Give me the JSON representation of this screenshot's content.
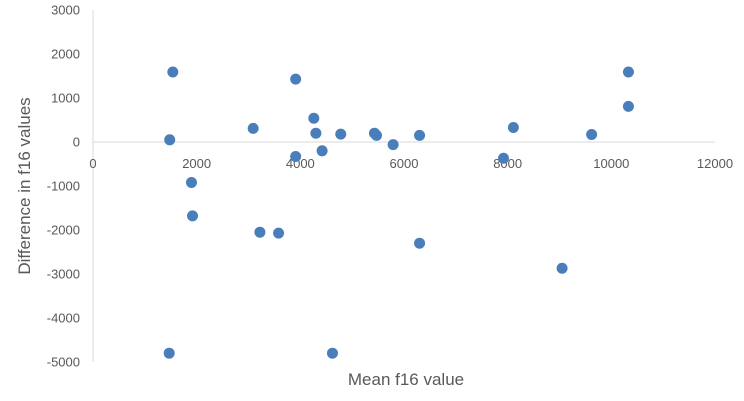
{
  "chart_data": {
    "type": "scatter",
    "title": "",
    "xlabel": "Mean f16 value",
    "ylabel": "Difference  in f16 values",
    "xlim": [
      0,
      12000
    ],
    "ylim": [
      -5000,
      3000
    ],
    "xticks": [
      0,
      2000,
      4000,
      6000,
      8000,
      10000,
      12000
    ],
    "yticks": [
      3000,
      2000,
      1000,
      0,
      -1000,
      -2000,
      -3000,
      -4000,
      -5000
    ],
    "xtick_labels": [
      "0",
      "2000",
      "4000",
      "6000",
      "8000",
      "10000",
      "12000"
    ],
    "ytick_labels": [
      "3000",
      "2000",
      "1000",
      "0",
      "-1000",
      "-2000",
      "-3000",
      "-4000",
      "-5000"
    ],
    "grid": false,
    "legend": "none",
    "marker_color": "#4a7ebb",
    "axis_color": "#d9d9d9",
    "text_color": "#595959",
    "series": [
      {
        "points": [
          {
            "x": 1480,
            "y": 50
          },
          {
            "x": 1540,
            "y": 1590
          },
          {
            "x": 1470,
            "y": -4800
          },
          {
            "x": 1900,
            "y": -920
          },
          {
            "x": 1920,
            "y": -1680
          },
          {
            "x": 3090,
            "y": 310
          },
          {
            "x": 3220,
            "y": -2050
          },
          {
            "x": 3580,
            "y": -2070
          },
          {
            "x": 3910,
            "y": 1430
          },
          {
            "x": 3910,
            "y": -330
          },
          {
            "x": 4260,
            "y": 540
          },
          {
            "x": 4300,
            "y": 200
          },
          {
            "x": 4420,
            "y": -200
          },
          {
            "x": 4620,
            "y": -4800
          },
          {
            "x": 4780,
            "y": 180
          },
          {
            "x": 5430,
            "y": 200
          },
          {
            "x": 5470,
            "y": 150
          },
          {
            "x": 5790,
            "y": -60
          },
          {
            "x": 6300,
            "y": 150
          },
          {
            "x": 6300,
            "y": -2300
          },
          {
            "x": 7920,
            "y": -370
          },
          {
            "x": 8110,
            "y": 330
          },
          {
            "x": 9050,
            "y": -2870
          },
          {
            "x": 9620,
            "y": 170
          },
          {
            "x": 10330,
            "y": 1590
          },
          {
            "x": 10330,
            "y": 810
          }
        ]
      }
    ]
  }
}
